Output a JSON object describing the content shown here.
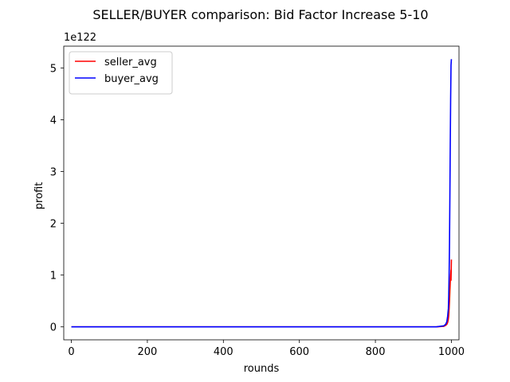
{
  "chart_data": {
    "type": "line",
    "title": "SELLER/BUYER comparison: Bid Factor Increase 5-10",
    "xlabel": "rounds",
    "ylabel": "profit",
    "y_offset_text": "1e122",
    "xlim": [
      -20,
      1020
    ],
    "ylim": [
      -0.25,
      5.42
    ],
    "xticks": [
      0,
      200,
      400,
      600,
      800,
      1000
    ],
    "yticks": [
      0,
      1,
      2,
      3,
      4,
      5
    ],
    "legend_position": "top-left",
    "grid": false,
    "series": [
      {
        "name": "seller_avg",
        "color": "#ff0000",
        "x": [
          0,
          200,
          400,
          600,
          800,
          960,
          980,
          985,
          988,
          990,
          992,
          993,
          994,
          995,
          996,
          997,
          998,
          999,
          999,
          1000
        ],
        "y": [
          0,
          0,
          0,
          0,
          0,
          0.0,
          0.01,
          0.03,
          0.05,
          0.08,
          0.15,
          0.22,
          0.35,
          0.5,
          0.7,
          0.85,
          1.0,
          1.1,
          0.9,
          1.3
        ]
      },
      {
        "name": "buyer_avg",
        "color": "#0000ff",
        "x": [
          0,
          200,
          400,
          600,
          800,
          960,
          980,
          985,
          988,
          990,
          992,
          993,
          994,
          995,
          996,
          997,
          998,
          999,
          1000
        ],
        "y": [
          0,
          0,
          0,
          0,
          0,
          0.0,
          0.02,
          0.05,
          0.1,
          0.2,
          0.35,
          0.6,
          1.0,
          1.6,
          2.5,
          3.5,
          4.4,
          5.05,
          5.17
        ]
      }
    ]
  }
}
